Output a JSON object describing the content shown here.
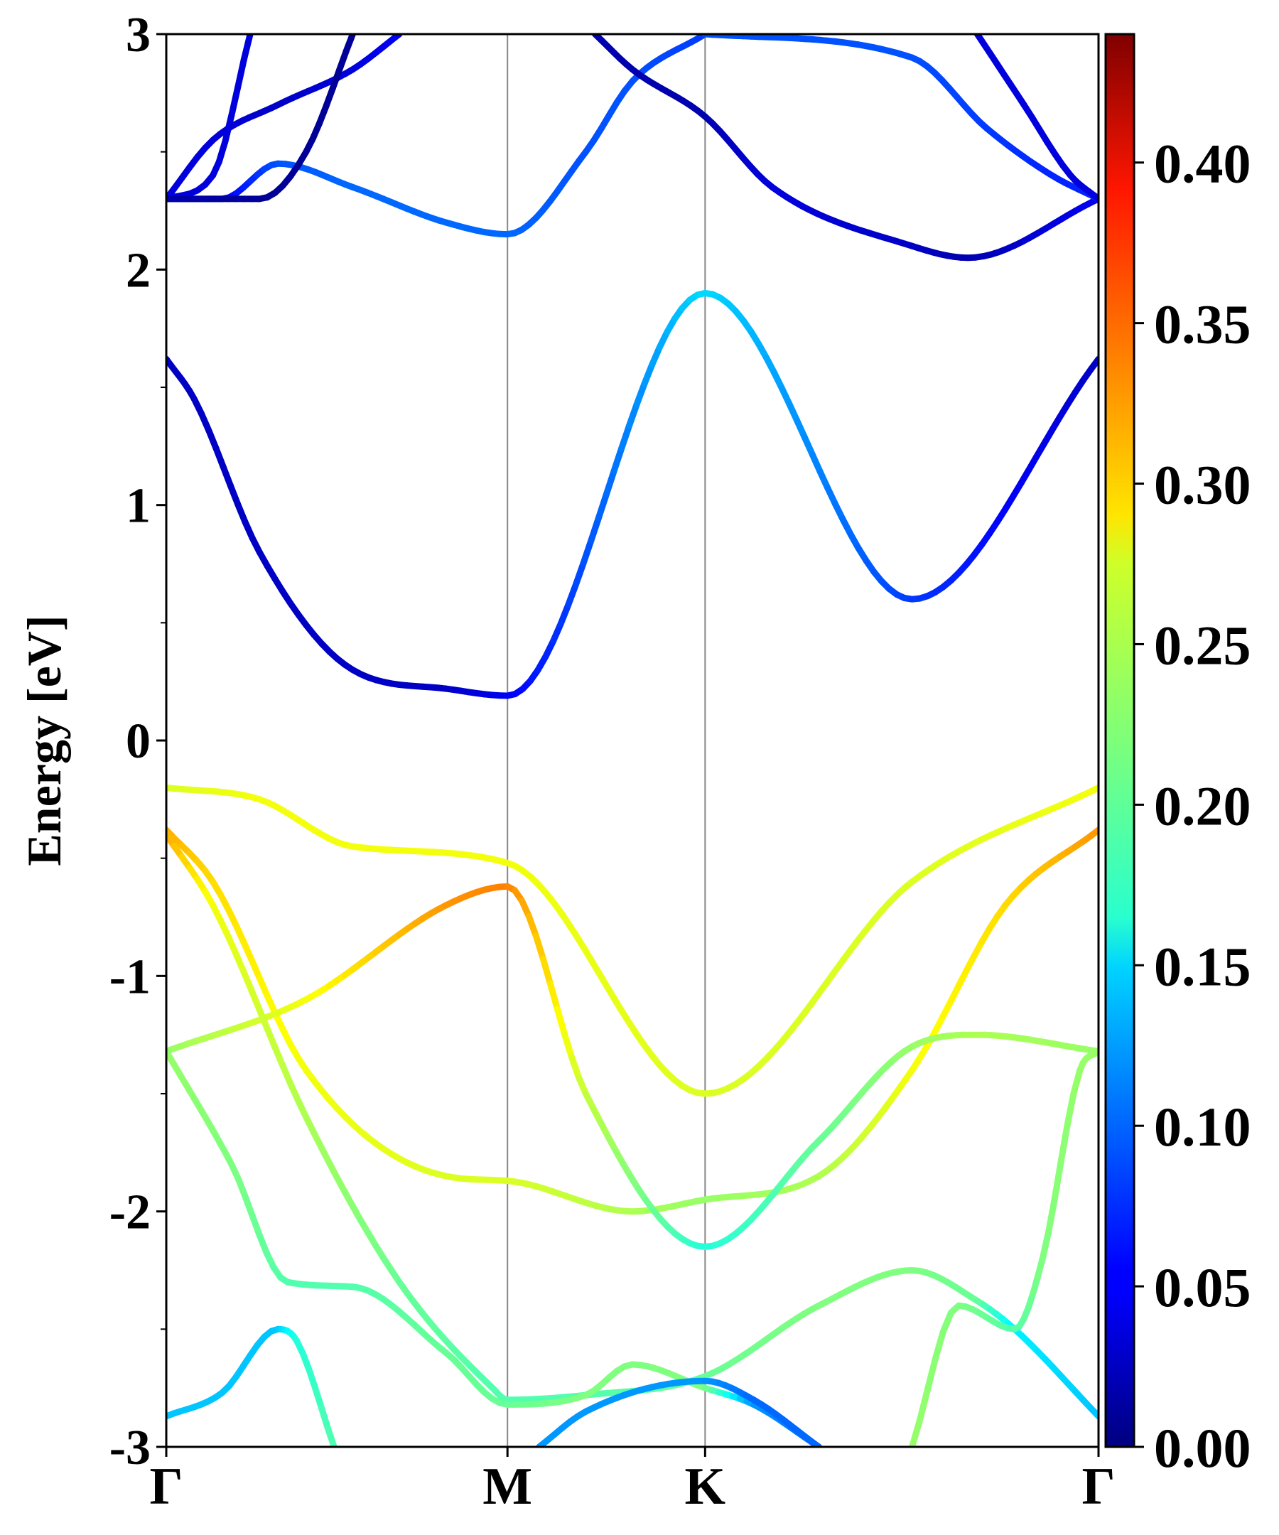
{
  "chart_data": {
    "type": "line",
    "title": "",
    "xlabel": "",
    "ylabel": "Energy [eV]",
    "ylim": [
      -3,
      3
    ],
    "xlim": [
      0,
      1
    ],
    "grid": false,
    "yticks": [
      {
        "v": -3,
        "label": "-3"
      },
      {
        "v": -2,
        "label": "-2"
      },
      {
        "v": -1,
        "label": "-1"
      },
      {
        "v": 0,
        "label": "0"
      },
      {
        "v": 1,
        "label": "1"
      },
      {
        "v": 2,
        "label": "2"
      },
      {
        "v": 3,
        "label": "3"
      }
    ],
    "kpoints": [
      {
        "label": "Γ",
        "x": 0.0
      },
      {
        "label": "M",
        "x": 0.366
      },
      {
        "label": "K",
        "x": 0.578
      },
      {
        "label": "Γ",
        "x": 1.0
      }
    ],
    "colorbar": {
      "colormap": "jet",
      "min": 0.0,
      "max": 0.44,
      "ticks": [
        {
          "v": 0.0,
          "label": "0.00"
        },
        {
          "v": 0.05,
          "label": "0.05"
        },
        {
          "v": 0.1,
          "label": "0.10"
        },
        {
          "v": 0.15,
          "label": "0.15"
        },
        {
          "v": 0.2,
          "label": "0.20"
        },
        {
          "v": 0.25,
          "label": "0.25"
        },
        {
          "v": 0.3,
          "label": "0.30"
        },
        {
          "v": 0.35,
          "label": "0.35"
        },
        {
          "v": 0.4,
          "label": "0.40"
        }
      ]
    },
    "series": [
      {
        "points": [
          [
            0,
            1.62
          ],
          [
            0.03,
            1.45
          ],
          [
            0.1,
            0.8
          ],
          [
            0.2,
            0.3
          ],
          [
            0.3,
            0.22
          ],
          [
            0.366,
            0.19
          ],
          [
            0.578,
            1.9
          ],
          [
            0.8,
            0.6
          ],
          [
            1.0,
            1.62
          ]
        ],
        "colors": [
          0.03,
          0.03,
          0.03,
          0.03,
          0.03,
          0.05,
          0.15,
          0.08,
          0.03
        ]
      },
      {
        "points": [
          [
            0,
            -0.2
          ],
          [
            0.1,
            -0.25
          ],
          [
            0.2,
            -0.45
          ],
          [
            0.366,
            -0.52
          ],
          [
            0.578,
            -1.5
          ],
          [
            0.8,
            -0.6
          ],
          [
            1.0,
            -0.2
          ]
        ],
        "colors": [
          0.26,
          0.27,
          0.27,
          0.27,
          0.26,
          0.26,
          0.27
        ]
      },
      {
        "points": [
          [
            0,
            -0.38
          ],
          [
            0.05,
            -0.6
          ],
          [
            0.15,
            -1.4
          ],
          [
            0.3,
            -1.85
          ],
          [
            0.366,
            -1.87
          ],
          [
            0.5,
            -2.0
          ],
          [
            0.578,
            -1.95
          ],
          [
            0.7,
            -1.85
          ],
          [
            0.8,
            -1.4
          ],
          [
            0.9,
            -0.7
          ],
          [
            1.0,
            -0.38
          ]
        ],
        "colors": [
          0.31,
          0.29,
          0.27,
          0.26,
          0.26,
          0.24,
          0.23,
          0.24,
          0.27,
          0.29,
          0.32
        ]
      },
      {
        "points": [
          [
            0,
            -1.32
          ],
          [
            0.15,
            -1.1
          ],
          [
            0.3,
            -0.7
          ],
          [
            0.366,
            -0.62
          ],
          [
            0.45,
            -1.5
          ],
          [
            0.578,
            -2.15
          ],
          [
            0.7,
            -1.7
          ],
          [
            0.8,
            -1.3
          ],
          [
            0.87,
            -1.25
          ],
          [
            1.0,
            -1.32
          ]
        ],
        "colors": [
          0.23,
          0.27,
          0.32,
          0.33,
          0.25,
          0.18,
          0.21,
          0.23,
          0.24,
          0.23
        ]
      },
      {
        "points": [
          [
            0,
            -0.4
          ],
          [
            0.05,
            -0.7
          ],
          [
            0.15,
            -1.6
          ],
          [
            0.25,
            -2.3
          ],
          [
            0.35,
            -2.75
          ],
          [
            0.366,
            -2.8
          ],
          [
            0.45,
            -2.78
          ],
          [
            0.578,
            -2.7
          ],
          [
            0.7,
            -2.4
          ],
          [
            0.8,
            -2.25
          ],
          [
            0.87,
            -2.38
          ],
          [
            0.91,
            -2.5
          ],
          [
            1.0,
            -2.87
          ]
        ],
        "colors": [
          0.31,
          0.27,
          0.24,
          0.21,
          0.2,
          0.2,
          0.2,
          0.21,
          0.22,
          0.22,
          0.21,
          0.16,
          0.14
        ]
      },
      {
        "points": [
          [
            0,
            -1.32
          ],
          [
            0.07,
            -1.8
          ],
          [
            0.13,
            -2.3
          ],
          [
            0.2,
            -2.32
          ],
          [
            0.3,
            -2.6
          ],
          [
            0.366,
            -2.82
          ],
          [
            0.45,
            -2.78
          ],
          [
            0.5,
            -2.65
          ],
          [
            0.578,
            -2.75
          ],
          [
            0.63,
            -2.82
          ],
          [
            0.7,
            -3.0
          ]
        ],
        "colors": [
          0.23,
          0.22,
          0.2,
          0.2,
          0.21,
          0.21,
          0.22,
          0.22,
          0.22,
          0.12,
          0.1
        ]
      },
      {
        "points": [
          [
            0,
            -2.87
          ],
          [
            0.06,
            -2.77
          ],
          [
            0.12,
            -2.5
          ],
          [
            0.14,
            -2.55
          ],
          [
            0.18,
            -3.0
          ]
        ],
        "colors": [
          0.14,
          0.14,
          0.14,
          0.18,
          0.2
        ]
      },
      {
        "points": [
          [
            0.8,
            -3.0
          ],
          [
            0.85,
            -2.4
          ],
          [
            0.91,
            -2.5
          ],
          [
            0.94,
            -2.2
          ],
          [
            0.98,
            -1.4
          ],
          [
            1.0,
            -1.32
          ]
        ],
        "colors": [
          0.23,
          0.22,
          0.2,
          0.22,
          0.23,
          0.23
        ]
      },
      {
        "points": [
          [
            0.4,
            -3.0
          ],
          [
            0.45,
            -2.85
          ],
          [
            0.578,
            -2.72
          ],
          [
            0.63,
            -2.8
          ],
          [
            0.7,
            -3.0
          ]
        ],
        "colors": [
          0.12,
          0.12,
          0.12,
          0.1,
          0.1
        ]
      },
      {
        "points": [
          [
            0,
            2.3
          ],
          [
            0.06,
            2.3
          ],
          [
            0.12,
            2.45
          ],
          [
            0.2,
            2.35
          ],
          [
            0.3,
            2.2
          ],
          [
            0.366,
            2.15
          ],
          [
            0.45,
            2.5
          ],
          [
            0.5,
            2.8
          ],
          [
            0.578,
            3.0
          ]
        ],
        "colors": [
          0.05,
          0.05,
          0.09,
          0.1,
          0.1,
          0.1,
          0.09,
          0.09,
          0.08
        ]
      },
      {
        "points": [
          [
            0,
            2.3
          ],
          [
            0.05,
            2.55
          ],
          [
            0.12,
            2.7
          ],
          [
            0.2,
            2.85
          ],
          [
            0.25,
            3.0
          ]
        ],
        "colors": [
          0.04,
          0.04,
          0.03,
          0.04,
          0.05
        ]
      },
      {
        "points": [
          [
            0,
            2.3
          ],
          [
            0.05,
            2.4
          ],
          [
            0.09,
            3.0
          ]
        ],
        "colors": [
          0.04,
          0.04,
          0.04
        ]
      },
      {
        "points": [
          [
            0,
            2.3
          ],
          [
            0.1,
            2.3
          ],
          [
            0.15,
            2.5
          ],
          [
            0.2,
            3.0
          ]
        ],
        "colors": [
          0.02,
          0.01,
          0.01,
          0.01
        ]
      },
      {
        "points": [
          [
            0.46,
            3.0
          ],
          [
            0.5,
            2.85
          ],
          [
            0.578,
            2.65
          ],
          [
            0.65,
            2.35
          ],
          [
            0.8,
            2.1
          ],
          [
            0.86,
            2.05
          ],
          [
            1.0,
            2.3
          ]
        ],
        "colors": [
          0.02,
          0.02,
          0.02,
          0.04,
          0.03,
          0.02,
          0.05
        ]
      },
      {
        "points": [
          [
            0.578,
            3.0
          ],
          [
            0.8,
            2.9
          ],
          [
            0.88,
            2.6
          ],
          [
            0.95,
            2.4
          ],
          [
            1.0,
            2.3
          ]
        ],
        "colors": [
          0.09,
          0.09,
          0.08,
          0.07,
          0.07
        ]
      },
      {
        "points": [
          [
            0.87,
            3.0
          ],
          [
            0.92,
            2.7
          ],
          [
            0.97,
            2.4
          ],
          [
            1.0,
            2.3
          ]
        ],
        "colors": [
          0.04,
          0.04,
          0.04,
          0.04
        ]
      }
    ]
  }
}
